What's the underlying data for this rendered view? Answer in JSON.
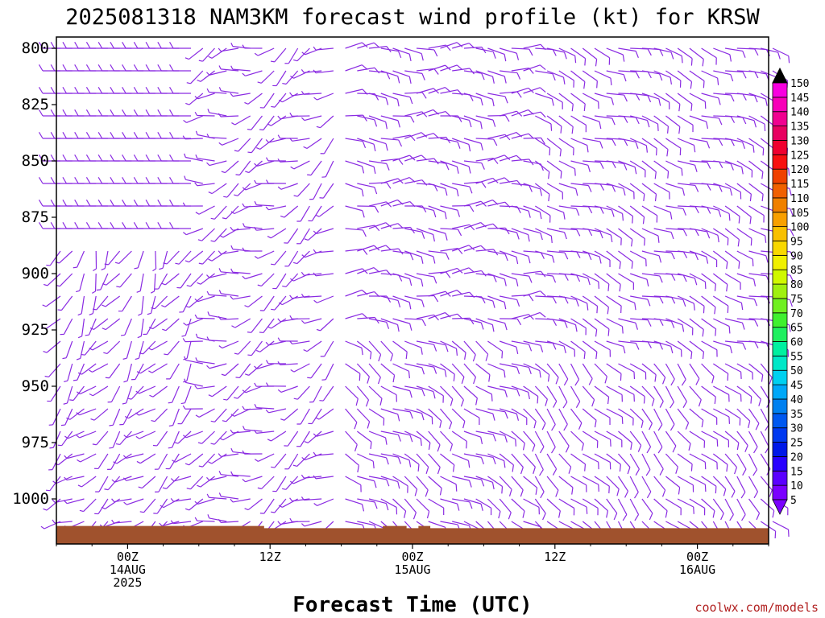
{
  "chart_data": {
    "type": "wind-barb-time-height",
    "title": "2025081318 NAM3KM forecast wind profile (kt) for KRSW",
    "xlabel": "Forecast Time (UTC)",
    "ylabel": "",
    "credit": "coolwx.com/models",
    "init_time": "2025-08-13T18:00Z",
    "forecast_hours": [
      0,
      60
    ],
    "time_step_hours": 1,
    "ylim": [
      1020,
      795
    ],
    "y_scale": "linear, inverted (pressure hPa)",
    "y_ticks": [
      "800",
      "825",
      "850",
      "875",
      "900",
      "925",
      "950",
      "975",
      "1000"
    ],
    "x_ticks": [
      {
        "hour": 6,
        "lines": [
          "00Z",
          "14AUG",
          "2025"
        ]
      },
      {
        "hour": 18,
        "lines": [
          "12Z"
        ]
      },
      {
        "hour": 30,
        "lines": [
          "00Z",
          "15AUG"
        ]
      },
      {
        "hour": 42,
        "lines": [
          "12Z"
        ]
      },
      {
        "hour": 54,
        "lines": [
          "00Z",
          "16AUG"
        ]
      }
    ],
    "pressure_levels_hpa": [
      800,
      810,
      820,
      830,
      840,
      850,
      860,
      870,
      880,
      890,
      900,
      910,
      920,
      930,
      940,
      950,
      960,
      970,
      980,
      990,
      1000,
      1010
    ],
    "barb_color_range": "5-10 kt",
    "wind_regimes_approx": [
      {
        "hours": [
          0,
          12
        ],
        "levels": "800-880",
        "dir_deg": 270,
        "speed_kt": 10,
        "note": "westerly aloft"
      },
      {
        "hours": [
          0,
          12
        ],
        "levels": "880-1010",
        "dir_deg": 200,
        "speed_kt": 7,
        "note": "light southerly near surface"
      },
      {
        "hours": [
          12,
          24
        ],
        "levels": "800-1010",
        "dir_deg": 230,
        "speed_kt": 8,
        "note": "veering southwesterly"
      },
      {
        "hours": [
          24,
          40
        ],
        "levels": "800-1010",
        "dir_deg": 90,
        "speed_kt": 10,
        "note": "easterly"
      },
      {
        "hours": [
          40,
          60
        ],
        "levels": "800-1010",
        "dir_deg": 110,
        "speed_kt": 10,
        "note": "east-southeasterly"
      }
    ],
    "surface_pressure_hpa": [
      1012,
      1012,
      1012,
      1012,
      1012,
      1012,
      1012,
      1012,
      1012,
      1012,
      1012,
      1012,
      1012,
      1012,
      1012,
      1012,
      1012,
      1012,
      1013,
      1013,
      1013,
      1013,
      1013,
      1013,
      1013,
      1013,
      1013,
      1013,
      1012,
      1012,
      1013,
      1012,
      1013,
      1013,
      1013,
      1013,
      1013,
      1013,
      1013,
      1013,
      1013,
      1013,
      1013,
      1013,
      1013,
      1013,
      1013,
      1013,
      1013,
      1013,
      1013,
      1013,
      1013,
      1013,
      1013,
      1013,
      1013,
      1013,
      1013,
      1013,
      1013
    ],
    "colorbar": {
      "labels": [
        "5",
        "10",
        "15",
        "20",
        "25",
        "30",
        "35",
        "40",
        "45",
        "50",
        "55",
        "60",
        "65",
        "70",
        "75",
        "80",
        "85",
        "90",
        "95",
        "100",
        "105",
        "110",
        "115",
        "120",
        "125",
        "130",
        "135",
        "140",
        "145",
        "150"
      ],
      "colors": [
        "#7a00ff",
        "#5a00ff",
        "#2800ff",
        "#0018e8",
        "#0038f0",
        "#0058f0",
        "#0080f0",
        "#00a8f8",
        "#00d0f0",
        "#00e8c8",
        "#00f0a0",
        "#20f060",
        "#40f030",
        "#70f020",
        "#a0f010",
        "#d0f800",
        "#f0f000",
        "#f8d800",
        "#f8c000",
        "#f8a000",
        "#f08000",
        "#f06000",
        "#f04000",
        "#f81010",
        "#f00030",
        "#e80060",
        "#f00090",
        "#f800b8",
        "#f800e0",
        "#000000"
      ]
    },
    "colors": {
      "barb": "#8a2be2",
      "terrain": "#a0522d",
      "credit": "#b22222"
    }
  }
}
